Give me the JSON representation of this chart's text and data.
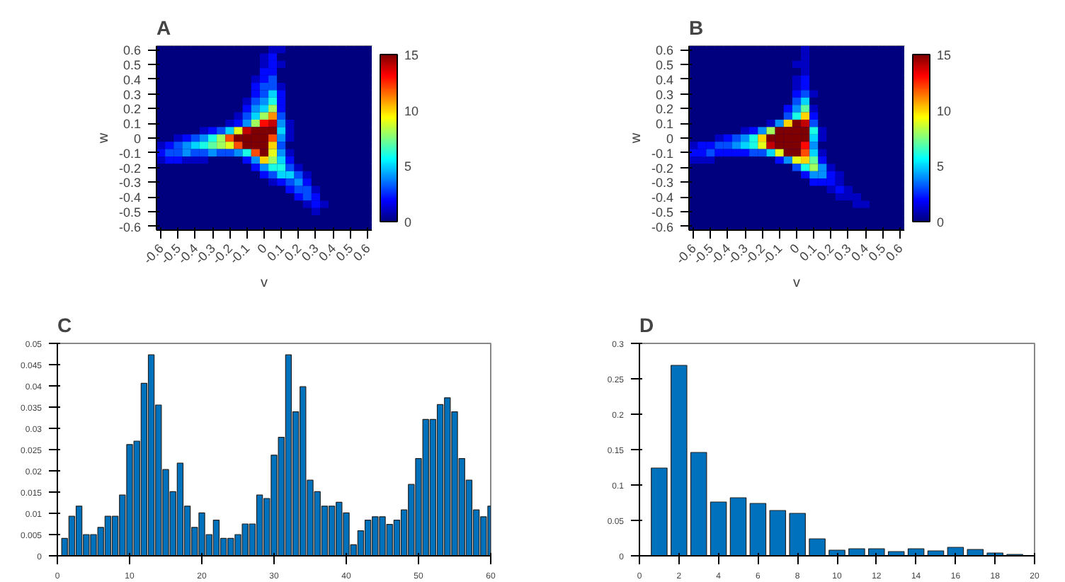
{
  "chart_data": [
    {
      "type": "heatmap",
      "title": "A",
      "xlabel": "v",
      "ylabel": "w",
      "clim": [
        0,
        15
      ],
      "cticks": [
        0,
        5,
        10,
        15
      ],
      "xlim": [
        -0.625,
        0.625
      ],
      "ylim": [
        -0.625,
        0.625
      ],
      "xticks": [
        -0.6,
        -0.5,
        -0.4,
        -0.3,
        -0.2,
        -0.1,
        0,
        0.1,
        0.2,
        0.3,
        0.4,
        0.5,
        0.6
      ],
      "yticks": [
        -0.6,
        -0.5,
        -0.4,
        -0.3,
        -0.2,
        -0.1,
        0,
        0.1,
        0.2,
        0.3,
        0.4,
        0.5,
        0.6
      ],
      "x": [
        -0.6,
        -0.55,
        -0.5,
        -0.45,
        -0.4,
        -0.35,
        -0.3,
        -0.25,
        -0.2,
        -0.15,
        -0.1,
        -0.05,
        0,
        0.05,
        0.1,
        0.15,
        0.2,
        0.25,
        0.3,
        0.35,
        0.4,
        0.45,
        0.5,
        0.55,
        0.6
      ],
      "y": [
        0.6,
        0.55,
        0.5,
        0.45,
        0.4,
        0.35,
        0.3,
        0.25,
        0.2,
        0.15,
        0.1,
        0.05,
        0,
        -0.05,
        -0.1,
        -0.15,
        -0.2,
        -0.25,
        -0.3,
        -0.35,
        -0.4,
        -0.45,
        -0.5,
        -0.55,
        -0.6
      ],
      "cells": [
        [
          0,
          0,
          0,
          0,
          0,
          0,
          0,
          0,
          0,
          0,
          0,
          0,
          0,
          1,
          1,
          0,
          0,
          0,
          0,
          0,
          0,
          0,
          0,
          0,
          0
        ],
        [
          0,
          0,
          0,
          0,
          0,
          0,
          0,
          0,
          0,
          0,
          0,
          0,
          1,
          2,
          0,
          0,
          0,
          0,
          0,
          0,
          0,
          0,
          0,
          0,
          0
        ],
        [
          0,
          0,
          0,
          0,
          0,
          0,
          0,
          0,
          0,
          0,
          0,
          0,
          1,
          2,
          1,
          0,
          0,
          0,
          0,
          0,
          0,
          0,
          0,
          0,
          0
        ],
        [
          0,
          0,
          0,
          0,
          0,
          0,
          0,
          0,
          0,
          0,
          0,
          0,
          2,
          2,
          0,
          0,
          0,
          0,
          0,
          0,
          0,
          0,
          0,
          0,
          0
        ],
        [
          0,
          0,
          0,
          0,
          0,
          0,
          0,
          0,
          0,
          0,
          0,
          1,
          2,
          3,
          0,
          0,
          0,
          0,
          0,
          0,
          0,
          0,
          0,
          0,
          0
        ],
        [
          0,
          0,
          0,
          0,
          0,
          0,
          0,
          0,
          0,
          0,
          0,
          2,
          3,
          3,
          1,
          0,
          0,
          0,
          0,
          0,
          0,
          0,
          0,
          0,
          0
        ],
        [
          0,
          0,
          0,
          0,
          0,
          0,
          0,
          0,
          0,
          0,
          0,
          2,
          3,
          5,
          2,
          0,
          0,
          0,
          0,
          0,
          0,
          0,
          0,
          0,
          0
        ],
        [
          0,
          0,
          0,
          0,
          0,
          0,
          0,
          0,
          0,
          0,
          1,
          3,
          4,
          6,
          2,
          0,
          0,
          0,
          0,
          0,
          0,
          0,
          0,
          0,
          0
        ],
        [
          0,
          0,
          0,
          0,
          0,
          0,
          0,
          0,
          0,
          0,
          2,
          4,
          5,
          8,
          2,
          0,
          0,
          0,
          0,
          0,
          0,
          0,
          0,
          0,
          0
        ],
        [
          0,
          0,
          0,
          0,
          0,
          0,
          0,
          0,
          0,
          1,
          3,
          5,
          8,
          11,
          3,
          0,
          0,
          0,
          0,
          0,
          0,
          0,
          0,
          0,
          0
        ],
        [
          0,
          0,
          0,
          0,
          0,
          0,
          0,
          0,
          1,
          2,
          4,
          8,
          13,
          14,
          4,
          1,
          0,
          0,
          0,
          0,
          0,
          0,
          0,
          0,
          0
        ],
        [
          0,
          0,
          0,
          0,
          0,
          1,
          2,
          3,
          5,
          9,
          14,
          15,
          15,
          15,
          5,
          1,
          0,
          0,
          0,
          0,
          0,
          0,
          0,
          0,
          0
        ],
        [
          0,
          0,
          1,
          2,
          3,
          4,
          6,
          8,
          12,
          15,
          15,
          15,
          15,
          12,
          4,
          1,
          0,
          0,
          0,
          0,
          0,
          0,
          0,
          0,
          0
        ],
        [
          1,
          2,
          3,
          4,
          5,
          6,
          7,
          8,
          9,
          12,
          15,
          15,
          15,
          10,
          3,
          0,
          0,
          0,
          0,
          0,
          0,
          0,
          0,
          0,
          0
        ],
        [
          2,
          3,
          3,
          4,
          3,
          3,
          4,
          3,
          3,
          4,
          6,
          12,
          15,
          9,
          4,
          1,
          0,
          0,
          0,
          0,
          0,
          0,
          0,
          0,
          0
        ],
        [
          1,
          2,
          2,
          1,
          1,
          1,
          0,
          0,
          0,
          0,
          2,
          4,
          10,
          8,
          5,
          2,
          0,
          0,
          0,
          0,
          0,
          0,
          0,
          0,
          0
        ],
        [
          0,
          0,
          0,
          0,
          0,
          0,
          0,
          0,
          0,
          0,
          0,
          2,
          4,
          6,
          6,
          3,
          1,
          0,
          0,
          0,
          0,
          0,
          0,
          0,
          0
        ],
        [
          0,
          0,
          0,
          0,
          0,
          0,
          0,
          0,
          0,
          0,
          0,
          0,
          2,
          3,
          5,
          5,
          3,
          1,
          0,
          0,
          0,
          0,
          0,
          0,
          0
        ],
        [
          0,
          0,
          0,
          0,
          0,
          0,
          0,
          0,
          0,
          0,
          0,
          0,
          0,
          1,
          2,
          3,
          4,
          2,
          0,
          0,
          0,
          0,
          0,
          0,
          0
        ],
        [
          0,
          0,
          0,
          0,
          0,
          0,
          0,
          0,
          0,
          0,
          0,
          0,
          0,
          0,
          0,
          2,
          3,
          3,
          1,
          0,
          0,
          0,
          0,
          0,
          0
        ],
        [
          0,
          0,
          0,
          0,
          0,
          0,
          0,
          0,
          0,
          0,
          0,
          0,
          0,
          0,
          0,
          0,
          2,
          3,
          2,
          0,
          0,
          0,
          0,
          0,
          0
        ],
        [
          0,
          0,
          0,
          0,
          0,
          0,
          0,
          0,
          0,
          0,
          0,
          0,
          0,
          0,
          0,
          0,
          0,
          1,
          2,
          1,
          0,
          0,
          0,
          0,
          0
        ],
        [
          0,
          0,
          0,
          0,
          0,
          0,
          0,
          0,
          0,
          0,
          0,
          0,
          0,
          0,
          0,
          0,
          0,
          0,
          1,
          0,
          0,
          0,
          0,
          0,
          0
        ],
        [
          0,
          0,
          0,
          0,
          0,
          0,
          0,
          0,
          0,
          0,
          0,
          0,
          0,
          0,
          0,
          0,
          0,
          0,
          0,
          0,
          0,
          0,
          0,
          0,
          0
        ],
        [
          0,
          0,
          0,
          0,
          0,
          0,
          0,
          0,
          0,
          0,
          0,
          0,
          0,
          0,
          0,
          0,
          0,
          0,
          0,
          0,
          0,
          0,
          0,
          0,
          0
        ]
      ]
    },
    {
      "type": "heatmap",
      "title": "B",
      "xlabel": "v",
      "ylabel": "w",
      "clim": [
        0,
        15
      ],
      "cticks": [
        0,
        5,
        10,
        15
      ],
      "xlim": [
        -0.625,
        0.625
      ],
      "ylim": [
        -0.625,
        0.625
      ],
      "xticks": [
        -0.6,
        -0.5,
        -0.4,
        -0.3,
        -0.2,
        -0.1,
        0,
        0.1,
        0.2,
        0.3,
        0.4,
        0.5,
        0.6
      ],
      "yticks": [
        -0.6,
        -0.5,
        -0.4,
        -0.3,
        -0.2,
        -0.1,
        0,
        0.1,
        0.2,
        0.3,
        0.4,
        0.5,
        0.6
      ],
      "x": [
        -0.6,
        -0.55,
        -0.5,
        -0.45,
        -0.4,
        -0.35,
        -0.3,
        -0.25,
        -0.2,
        -0.15,
        -0.1,
        -0.05,
        0,
        0.05,
        0.1,
        0.15,
        0.2,
        0.25,
        0.3,
        0.35,
        0.4,
        0.45,
        0.5,
        0.55,
        0.6
      ],
      "y": [
        0.6,
        0.55,
        0.5,
        0.45,
        0.4,
        0.35,
        0.3,
        0.25,
        0.2,
        0.15,
        0.1,
        0.05,
        0,
        -0.05,
        -0.1,
        -0.15,
        -0.2,
        -0.25,
        -0.3,
        -0.35,
        -0.4,
        -0.45,
        -0.5,
        -0.55,
        -0.6
      ],
      "cells": [
        [
          0,
          0,
          0,
          0,
          0,
          0,
          0,
          0,
          0,
          0,
          0,
          0,
          0,
          1,
          0,
          0,
          0,
          0,
          0,
          0,
          0,
          0,
          0,
          0,
          0
        ],
        [
          0,
          0,
          0,
          0,
          0,
          0,
          0,
          0,
          0,
          0,
          0,
          0,
          0,
          1,
          0,
          0,
          0,
          0,
          0,
          0,
          0,
          0,
          0,
          0,
          0
        ],
        [
          0,
          0,
          0,
          0,
          0,
          0,
          0,
          0,
          0,
          0,
          0,
          0,
          1,
          1,
          0,
          0,
          0,
          0,
          0,
          0,
          0,
          0,
          0,
          0,
          0
        ],
        [
          0,
          0,
          0,
          0,
          0,
          0,
          0,
          0,
          0,
          0,
          0,
          0,
          0,
          1,
          0,
          0,
          0,
          0,
          0,
          0,
          0,
          0,
          0,
          0,
          0
        ],
        [
          0,
          0,
          0,
          0,
          0,
          0,
          0,
          0,
          0,
          0,
          0,
          0,
          1,
          2,
          0,
          0,
          0,
          0,
          0,
          0,
          0,
          0,
          0,
          0,
          0
        ],
        [
          0,
          0,
          0,
          0,
          0,
          0,
          0,
          0,
          0,
          0,
          0,
          0,
          1,
          2,
          0,
          0,
          0,
          0,
          0,
          0,
          0,
          0,
          0,
          0,
          0
        ],
        [
          0,
          0,
          0,
          0,
          0,
          0,
          0,
          0,
          0,
          0,
          0,
          0,
          2,
          3,
          1,
          0,
          0,
          0,
          0,
          0,
          0,
          0,
          0,
          0,
          0
        ],
        [
          0,
          0,
          0,
          0,
          0,
          0,
          0,
          0,
          0,
          0,
          0,
          0,
          3,
          5,
          0,
          0,
          0,
          0,
          0,
          0,
          0,
          0,
          0,
          0,
          0
        ],
        [
          0,
          0,
          0,
          0,
          0,
          0,
          0,
          0,
          0,
          0,
          0,
          2,
          4,
          7,
          1,
          0,
          0,
          0,
          0,
          0,
          0,
          0,
          0,
          0,
          0
        ],
        [
          0,
          0,
          0,
          0,
          0,
          0,
          0,
          0,
          0,
          0,
          0,
          3,
          6,
          10,
          2,
          0,
          0,
          0,
          0,
          0,
          0,
          0,
          0,
          0,
          0
        ],
        [
          0,
          0,
          0,
          0,
          0,
          0,
          0,
          0,
          0,
          1,
          4,
          10,
          15,
          14,
          3,
          0,
          0,
          0,
          0,
          0,
          0,
          0,
          0,
          0,
          0
        ],
        [
          0,
          0,
          0,
          0,
          0,
          0,
          1,
          2,
          4,
          8,
          15,
          15,
          15,
          15,
          6,
          1,
          0,
          0,
          0,
          0,
          0,
          0,
          0,
          0,
          0
        ],
        [
          0,
          0,
          0,
          1,
          2,
          3,
          4,
          6,
          10,
          15,
          15,
          15,
          15,
          15,
          5,
          1,
          0,
          0,
          0,
          0,
          0,
          0,
          0,
          0,
          0
        ],
        [
          1,
          2,
          2,
          3,
          3,
          4,
          5,
          6,
          9,
          14,
          15,
          15,
          15,
          13,
          4,
          0,
          0,
          0,
          0,
          0,
          0,
          0,
          0,
          0,
          0
        ],
        [
          2,
          2,
          3,
          2,
          2,
          2,
          2,
          3,
          3,
          5,
          9,
          15,
          15,
          12,
          5,
          1,
          0,
          0,
          0,
          0,
          0,
          0,
          0,
          0,
          0
        ],
        [
          1,
          1,
          1,
          0,
          0,
          0,
          0,
          0,
          0,
          0,
          2,
          4,
          9,
          10,
          7,
          2,
          0,
          0,
          0,
          0,
          0,
          0,
          0,
          0,
          0
        ],
        [
          0,
          0,
          0,
          0,
          0,
          0,
          0,
          0,
          0,
          0,
          0,
          0,
          3,
          6,
          8,
          4,
          1,
          0,
          0,
          0,
          0,
          0,
          0,
          0,
          0
        ],
        [
          0,
          0,
          0,
          0,
          0,
          0,
          0,
          0,
          0,
          0,
          0,
          0,
          0,
          2,
          4,
          4,
          2,
          1,
          0,
          0,
          0,
          0,
          0,
          0,
          0
        ],
        [
          0,
          0,
          0,
          0,
          0,
          0,
          0,
          0,
          0,
          0,
          0,
          0,
          0,
          0,
          2,
          2,
          2,
          1,
          0,
          0,
          0,
          0,
          0,
          0,
          0
        ],
        [
          0,
          0,
          0,
          0,
          0,
          0,
          0,
          0,
          0,
          0,
          0,
          0,
          0,
          0,
          0,
          0,
          1,
          2,
          1,
          0,
          0,
          0,
          0,
          0,
          0
        ],
        [
          0,
          0,
          0,
          0,
          0,
          0,
          0,
          0,
          0,
          0,
          0,
          0,
          0,
          0,
          0,
          0,
          0,
          1,
          1,
          1,
          0,
          0,
          0,
          0,
          0
        ],
        [
          0,
          0,
          0,
          0,
          0,
          0,
          0,
          0,
          0,
          0,
          0,
          0,
          0,
          0,
          0,
          0,
          0,
          0,
          0,
          1,
          1,
          0,
          0,
          0,
          0
        ],
        [
          0,
          0,
          0,
          0,
          0,
          0,
          0,
          0,
          0,
          0,
          0,
          0,
          0,
          0,
          0,
          0,
          0,
          0,
          0,
          0,
          0,
          0,
          0,
          0,
          0
        ],
        [
          0,
          0,
          0,
          0,
          0,
          0,
          0,
          0,
          0,
          0,
          0,
          0,
          0,
          0,
          0,
          0,
          0,
          0,
          0,
          0,
          0,
          0,
          0,
          0,
          0
        ],
        [
          0,
          0,
          0,
          0,
          0,
          0,
          0,
          0,
          0,
          0,
          0,
          0,
          0,
          0,
          0,
          0,
          0,
          0,
          0,
          0,
          0,
          0,
          0,
          0,
          0
        ]
      ]
    },
    {
      "type": "bar",
      "title": "C",
      "xlim": [
        0,
        60
      ],
      "xticks": [
        0,
        10,
        20,
        30,
        40,
        50,
        60
      ],
      "ylim": [
        0,
        0.05
      ],
      "yticks": [
        0,
        0.005,
        0.01,
        0.015,
        0.02,
        0.025,
        0.03,
        0.035,
        0.04,
        0.045,
        0.05
      ],
      "x": [
        1,
        2,
        3,
        4,
        5,
        6,
        7,
        8,
        9,
        10,
        11,
        12,
        13,
        14,
        15,
        16,
        17,
        18,
        19,
        20,
        21,
        22,
        23,
        24,
        25,
        26,
        27,
        28,
        29,
        30,
        31,
        32,
        33,
        34,
        35,
        36,
        37,
        38,
        39,
        40,
        41,
        42,
        43,
        44,
        45,
        46,
        47,
        48,
        49,
        50,
        51,
        52,
        53,
        54,
        55,
        56,
        57,
        58,
        59,
        60
      ],
      "series": [
        {
          "color": "#0072bd",
          "values": [
            0.0041,
            0.0093,
            0.0117,
            0.005,
            0.005,
            0.0067,
            0.0093,
            0.0093,
            0.0143,
            0.0262,
            0.027,
            0.0406,
            0.0473,
            0.0355,
            0.0203,
            0.0151,
            0.0218,
            0.0117,
            0.0067,
            0.0101,
            0.005,
            0.0084,
            0.0041,
            0.0041,
            0.005,
            0.0075,
            0.0075,
            0.0143,
            0.0135,
            0.0237,
            0.0279,
            0.0473,
            0.0339,
            0.0398,
            0.0178,
            0.0151,
            0.0117,
            0.0117,
            0.0126,
            0.0101,
            0.0026,
            0.0059,
            0.0084,
            0.0092,
            0.0092,
            0.0074,
            0.0084,
            0.0108,
            0.0168,
            0.0229,
            0.0321,
            0.0321,
            0.0356,
            0.0372,
            0.0339,
            0.0229,
            0.0178,
            0.0108,
            0.0092,
            0.0117
          ]
        }
      ]
    },
    {
      "type": "bar",
      "title": "D",
      "xlim": [
        0,
        20
      ],
      "xticks": [
        0,
        2,
        4,
        6,
        8,
        10,
        12,
        14,
        16,
        18,
        20
      ],
      "ylim": [
        0,
        0.3
      ],
      "yticks": [
        0,
        0.05,
        0.1,
        0.15,
        0.2,
        0.25,
        0.3
      ],
      "x": [
        1,
        2,
        3,
        4,
        5,
        6,
        7,
        8,
        9,
        10,
        11,
        12,
        13,
        14,
        15,
        16,
        17,
        18,
        19
      ],
      "series": [
        {
          "color": "#0072bd",
          "values": [
            0.124,
            0.269,
            0.146,
            0.076,
            0.082,
            0.074,
            0.064,
            0.06,
            0.024,
            0.008,
            0.01,
            0.01,
            0.006,
            0.01,
            0.007,
            0.012,
            0.009,
            0.004,
            0.002
          ]
        }
      ]
    }
  ]
}
